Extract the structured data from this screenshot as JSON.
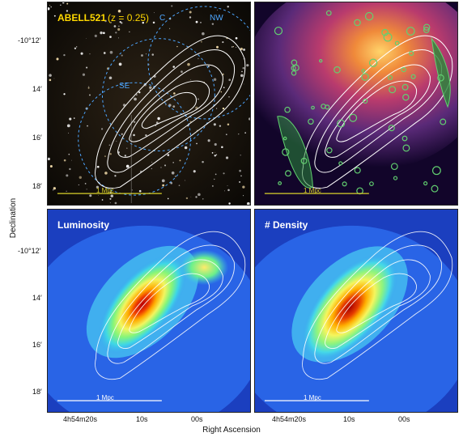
{
  "axes": {
    "y_label": "Declination",
    "x_label": "Right Ascension",
    "y_ticks": [
      "-10°12′",
      "14′",
      "16′",
      "18′"
    ],
    "x_ticks": [
      "4h54m20s",
      "10s",
      "00s"
    ]
  },
  "panels": {
    "top_left": {
      "title_main": "ABELL521",
      "title_suffix": "(z = 0.25)",
      "region_labels": [
        "C",
        "NW",
        "SE"
      ],
      "scale_label": "1 Mpc",
      "colors": {
        "title": "#ffd800",
        "circle": "#4da6ff",
        "scale": "#d9d22a"
      }
    },
    "top_right": {
      "scale_label": "1 Mpc",
      "colors": {
        "scale": "#d9d22a"
      }
    },
    "bottom_left": {
      "title": "Luminosity",
      "scale_label": "1 Mpc"
    },
    "bottom_right": {
      "title": "# Density",
      "scale_label": "1 Mpc"
    }
  }
}
